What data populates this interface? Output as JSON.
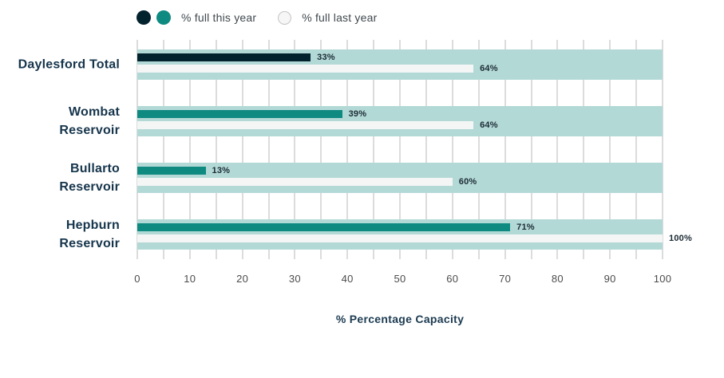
{
  "legend": {
    "this_year_label": "% full this year",
    "last_year_label": "% full last year"
  },
  "axis": {
    "title": "% Percentage Capacity",
    "ticks": [
      "0",
      "10",
      "20",
      "30",
      "40",
      "50",
      "60",
      "70",
      "80",
      "90",
      "100"
    ]
  },
  "chart_data": {
    "type": "bar",
    "orientation": "horizontal",
    "title": "",
    "xlabel": "% Percentage Capacity",
    "ylabel": "",
    "xlim": [
      0,
      100
    ],
    "tick_step": 10,
    "gridline_step": 5,
    "grid": true,
    "legend_position": "top",
    "categories": [
      "Daylesford Total",
      "Wombat Reservoir",
      "Bullarto Reservoir",
      "Hepburn Reservoir"
    ],
    "category_lines": [
      [
        "Daylesford Total"
      ],
      [
        "Wombat",
        "Reservoir"
      ],
      [
        "Bullarto",
        "Reservoir"
      ],
      [
        "Hepburn",
        "Reservoir"
      ]
    ],
    "series": [
      {
        "name": "% full this year",
        "values": [
          33,
          39,
          13,
          71
        ],
        "labels": [
          "33%",
          "39%",
          "13%",
          "71%"
        ],
        "colors": [
          "#02222e",
          "#0e8a81",
          "#0e8a81",
          "#0e8a81"
        ]
      },
      {
        "name": "% full last year",
        "values": [
          64,
          64,
          60,
          100
        ],
        "labels": [
          "64%",
          "64%",
          "60%",
          "100%"
        ],
        "color": "#f4f6f6"
      }
    ],
    "colors": {
      "track": "#b3d9d6",
      "gridline": "#dcdcdc",
      "navy": "#02222e",
      "teal": "#0e8a81",
      "last_year_fill": "#f4f6f6",
      "category_label": "#16354c",
      "axis_title": "#1b3a50",
      "tick_label": "#4c4c4c"
    }
  }
}
